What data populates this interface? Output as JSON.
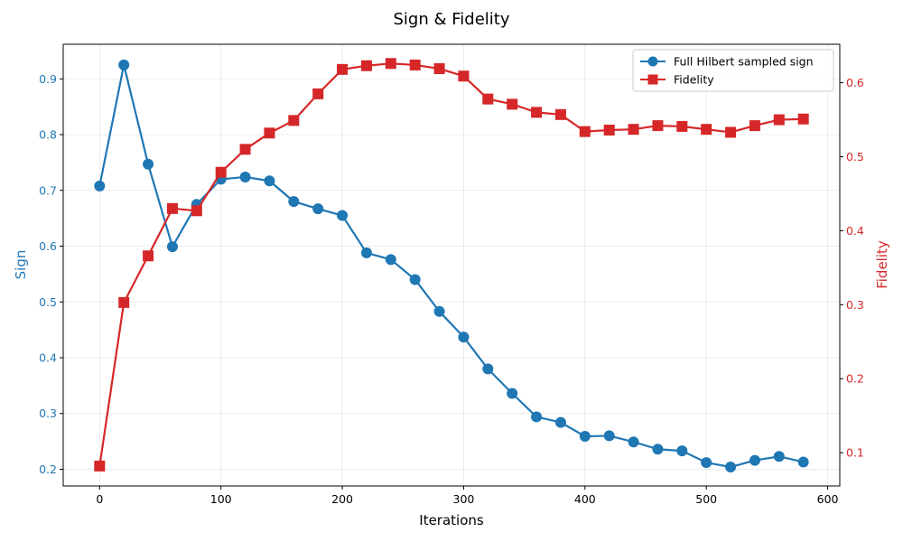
{
  "chart_data": {
    "type": "line",
    "title": "Sign & Fidelity",
    "xlabel": "Iterations",
    "ylabel_left": "Sign",
    "ylabel_right": "Fidelity",
    "xlim": [
      -30,
      610
    ],
    "ylim_left": [
      0.17,
      0.962
    ],
    "ylim_right": [
      0.055,
      0.652
    ],
    "x_ticks": [
      0,
      100,
      200,
      300,
      400,
      500,
      600
    ],
    "y_ticks_left": [
      0.2,
      0.3,
      0.4,
      0.5,
      0.6,
      0.7,
      0.8,
      0.9
    ],
    "y_ticks_right": [
      0.1,
      0.2,
      0.3,
      0.4,
      0.5,
      0.6
    ],
    "grid": true,
    "legend_position": "top-right",
    "x": [
      0,
      20,
      40,
      60,
      80,
      100,
      120,
      140,
      160,
      180,
      200,
      220,
      240,
      260,
      280,
      300,
      320,
      340,
      360,
      380,
      400,
      420,
      440,
      460,
      480,
      500,
      520,
      540,
      560,
      580
    ],
    "series": [
      {
        "name": "Full Hilbert sampled sign",
        "axis": "left",
        "marker": "circle",
        "color": "#1f77b4",
        "values": [
          0.708,
          0.925,
          0.747,
          0.599,
          0.675,
          0.72,
          0.724,
          0.717,
          0.68,
          0.667,
          0.655,
          0.588,
          0.576,
          0.54,
          0.483,
          0.437,
          0.38,
          0.336,
          0.294,
          0.284,
          0.259,
          0.26,
          0.249,
          0.236,
          0.233,
          0.212,
          0.204,
          0.216,
          0.223,
          0.213
        ]
      },
      {
        "name": "Fidelity",
        "axis": "right",
        "marker": "square",
        "color": "#d62728",
        "values": [
          0.082,
          0.303,
          0.366,
          0.43,
          0.427,
          0.479,
          0.51,
          0.532,
          0.549,
          0.585,
          0.618,
          0.623,
          0.626,
          0.624,
          0.619,
          0.609,
          0.578,
          0.571,
          0.56,
          0.557,
          0.534,
          0.536,
          0.537,
          0.542,
          0.541,
          0.537,
          0.533,
          0.542,
          0.55,
          0.551
        ]
      }
    ]
  }
}
